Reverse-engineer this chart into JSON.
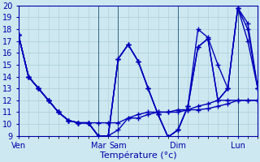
{
  "xlabel": "Température (°c)",
  "background_color": "#cde8f0",
  "grid_color": "#aaccd8",
  "line_color": "#0000bb",
  "ylim": [
    9,
    20
  ],
  "xlim": [
    0,
    24
  ],
  "day_tick_positions": [
    0,
    8,
    10,
    16,
    22
  ],
  "day_tick_labels": [
    "Ven",
    "Mar",
    "Sam",
    "Dim",
    "Lun"
  ],
  "vline_positions": [
    0,
    8,
    10,
    16,
    22,
    24
  ],
  "series": [
    {
      "x": [
        0,
        1,
        2,
        3,
        4,
        5,
        6,
        7,
        8,
        9,
        10,
        11,
        12,
        13,
        14,
        15,
        16,
        17,
        18,
        19,
        20,
        21,
        22,
        23,
        24
      ],
      "y": [
        17.5,
        14.0,
        13.0,
        12.0,
        11.0,
        10.3,
        10.1,
        10.1,
        10.1,
        10.1,
        10.1,
        10.5,
        10.5,
        10.8,
        11.0,
        11.0,
        11.0,
        11.2,
        11.2,
        11.3,
        11.5,
        11.7,
        12.0,
        12.0,
        12.0
      ]
    },
    {
      "x": [
        0,
        1,
        2,
        3,
        4,
        5,
        6,
        7,
        8,
        9,
        10,
        11,
        12,
        13,
        14,
        15,
        16,
        17,
        18,
        19,
        20,
        21,
        22,
        23,
        24
      ],
      "y": [
        17.5,
        14.0,
        13.0,
        12.0,
        11.0,
        10.3,
        10.1,
        10.1,
        9.0,
        9.0,
        9.5,
        10.5,
        10.8,
        11.0,
        11.0,
        11.0,
        11.2,
        11.2,
        11.5,
        11.7,
        12.0,
        12.0,
        12.0,
        12.0,
        12.0
      ]
    },
    {
      "x": [
        0,
        1,
        2,
        3,
        4,
        5,
        6,
        7,
        8,
        9,
        10,
        11,
        12,
        13,
        14,
        15,
        16,
        17,
        18,
        19,
        20,
        21,
        22,
        23,
        24
      ],
      "y": [
        17.5,
        14.0,
        13.0,
        12.0,
        11.0,
        10.3,
        10.1,
        10.1,
        9.0,
        9.0,
        15.5,
        16.7,
        15.3,
        13.0,
        10.8,
        8.9,
        9.5,
        11.5,
        16.5,
        17.2,
        12.0,
        13.0,
        19.8,
        17.0,
        13.0
      ]
    },
    {
      "x": [
        0,
        1,
        2,
        3,
        4,
        5,
        6,
        7,
        8,
        9,
        10,
        11,
        12,
        13,
        14,
        15,
        16,
        17,
        18,
        19,
        20,
        21,
        22,
        23,
        24
      ],
      "y": [
        17.5,
        14.0,
        13.0,
        12.0,
        11.0,
        10.3,
        10.1,
        10.1,
        9.0,
        9.0,
        15.5,
        16.7,
        15.3,
        13.0,
        10.8,
        8.9,
        9.5,
        11.5,
        16.5,
        17.2,
        12.0,
        13.0,
        19.8,
        18.0,
        13.0
      ]
    },
    {
      "x": [
        0,
        1,
        2,
        3,
        4,
        5,
        6,
        7,
        8,
        9,
        10,
        11,
        12,
        13,
        14,
        15,
        16,
        17,
        18,
        19,
        20,
        21,
        22,
        23,
        24
      ],
      "y": [
        17.5,
        14.0,
        13.0,
        12.0,
        11.0,
        10.3,
        10.1,
        10.1,
        9.0,
        9.0,
        15.5,
        16.7,
        15.3,
        13.0,
        10.8,
        8.9,
        9.5,
        11.5,
        18.0,
        17.3,
        15.0,
        13.0,
        19.8,
        18.5,
        13.0
      ]
    }
  ]
}
